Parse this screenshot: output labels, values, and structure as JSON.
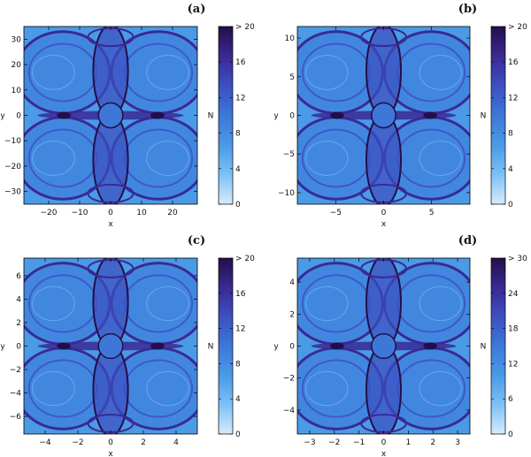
{
  "colors": {
    "background": "#4a9ae6",
    "ramp": [
      "#d6ebfb",
      "#7cc0f6",
      "#4a9ae6",
      "#3d78d8",
      "#3c4fbf",
      "#3a2a94",
      "#240e4a"
    ]
  },
  "chart_data": [
    {
      "type": "heatmap",
      "panel_label": "(a)",
      "xlabel": "x",
      "ylabel": "y",
      "xlim": [
        -28,
        28
      ],
      "ylim": [
        -35,
        35
      ],
      "xticks": [
        -20,
        -10,
        0,
        10,
        20
      ],
      "yticks": [
        -30,
        -20,
        -10,
        0,
        10,
        20,
        30
      ],
      "colorbar": {
        "label": "N",
        "min": 0,
        "max": 20,
        "ticks": [
          "0",
          "4",
          "8",
          "12",
          "16",
          "> 20"
        ]
      }
    },
    {
      "type": "heatmap",
      "panel_label": "(b)",
      "xlabel": "x",
      "ylabel": "y",
      "xlim": [
        -9,
        9
      ],
      "ylim": [
        -11.5,
        11.5
      ],
      "xticks": [
        -5,
        0,
        5
      ],
      "yticks": [
        -10,
        -5,
        0,
        5,
        10
      ],
      "colorbar": {
        "label": "N",
        "min": 0,
        "max": 20,
        "ticks": [
          "0",
          "4",
          "8",
          "12",
          "16",
          "> 20"
        ]
      }
    },
    {
      "type": "heatmap",
      "panel_label": "(c)",
      "xlabel": "x",
      "ylabel": "y",
      "xlim": [
        -5.3,
        5.3
      ],
      "ylim": [
        -7.5,
        7.5
      ],
      "xticks": [
        -4,
        -2,
        0,
        2,
        4
      ],
      "yticks": [
        -6,
        -4,
        -2,
        0,
        2,
        4,
        6
      ],
      "colorbar": {
        "label": "N",
        "min": 0,
        "max": 20,
        "ticks": [
          "0",
          "4",
          "8",
          "12",
          "16",
          "> 20"
        ]
      }
    },
    {
      "type": "heatmap",
      "panel_label": "(d)",
      "xlabel": "x",
      "ylabel": "y",
      "xlim": [
        -3.5,
        3.5
      ],
      "ylim": [
        -5.5,
        5.5
      ],
      "xticks": [
        -3,
        -2,
        -1,
        0,
        1,
        2,
        3
      ],
      "yticks": [
        -4,
        -2,
        0,
        2,
        4
      ],
      "colorbar": {
        "label": "N",
        "min": 0,
        "max": 30,
        "ticks": [
          "0",
          "6",
          "12",
          "18",
          "24",
          "> 30"
        ]
      }
    }
  ]
}
